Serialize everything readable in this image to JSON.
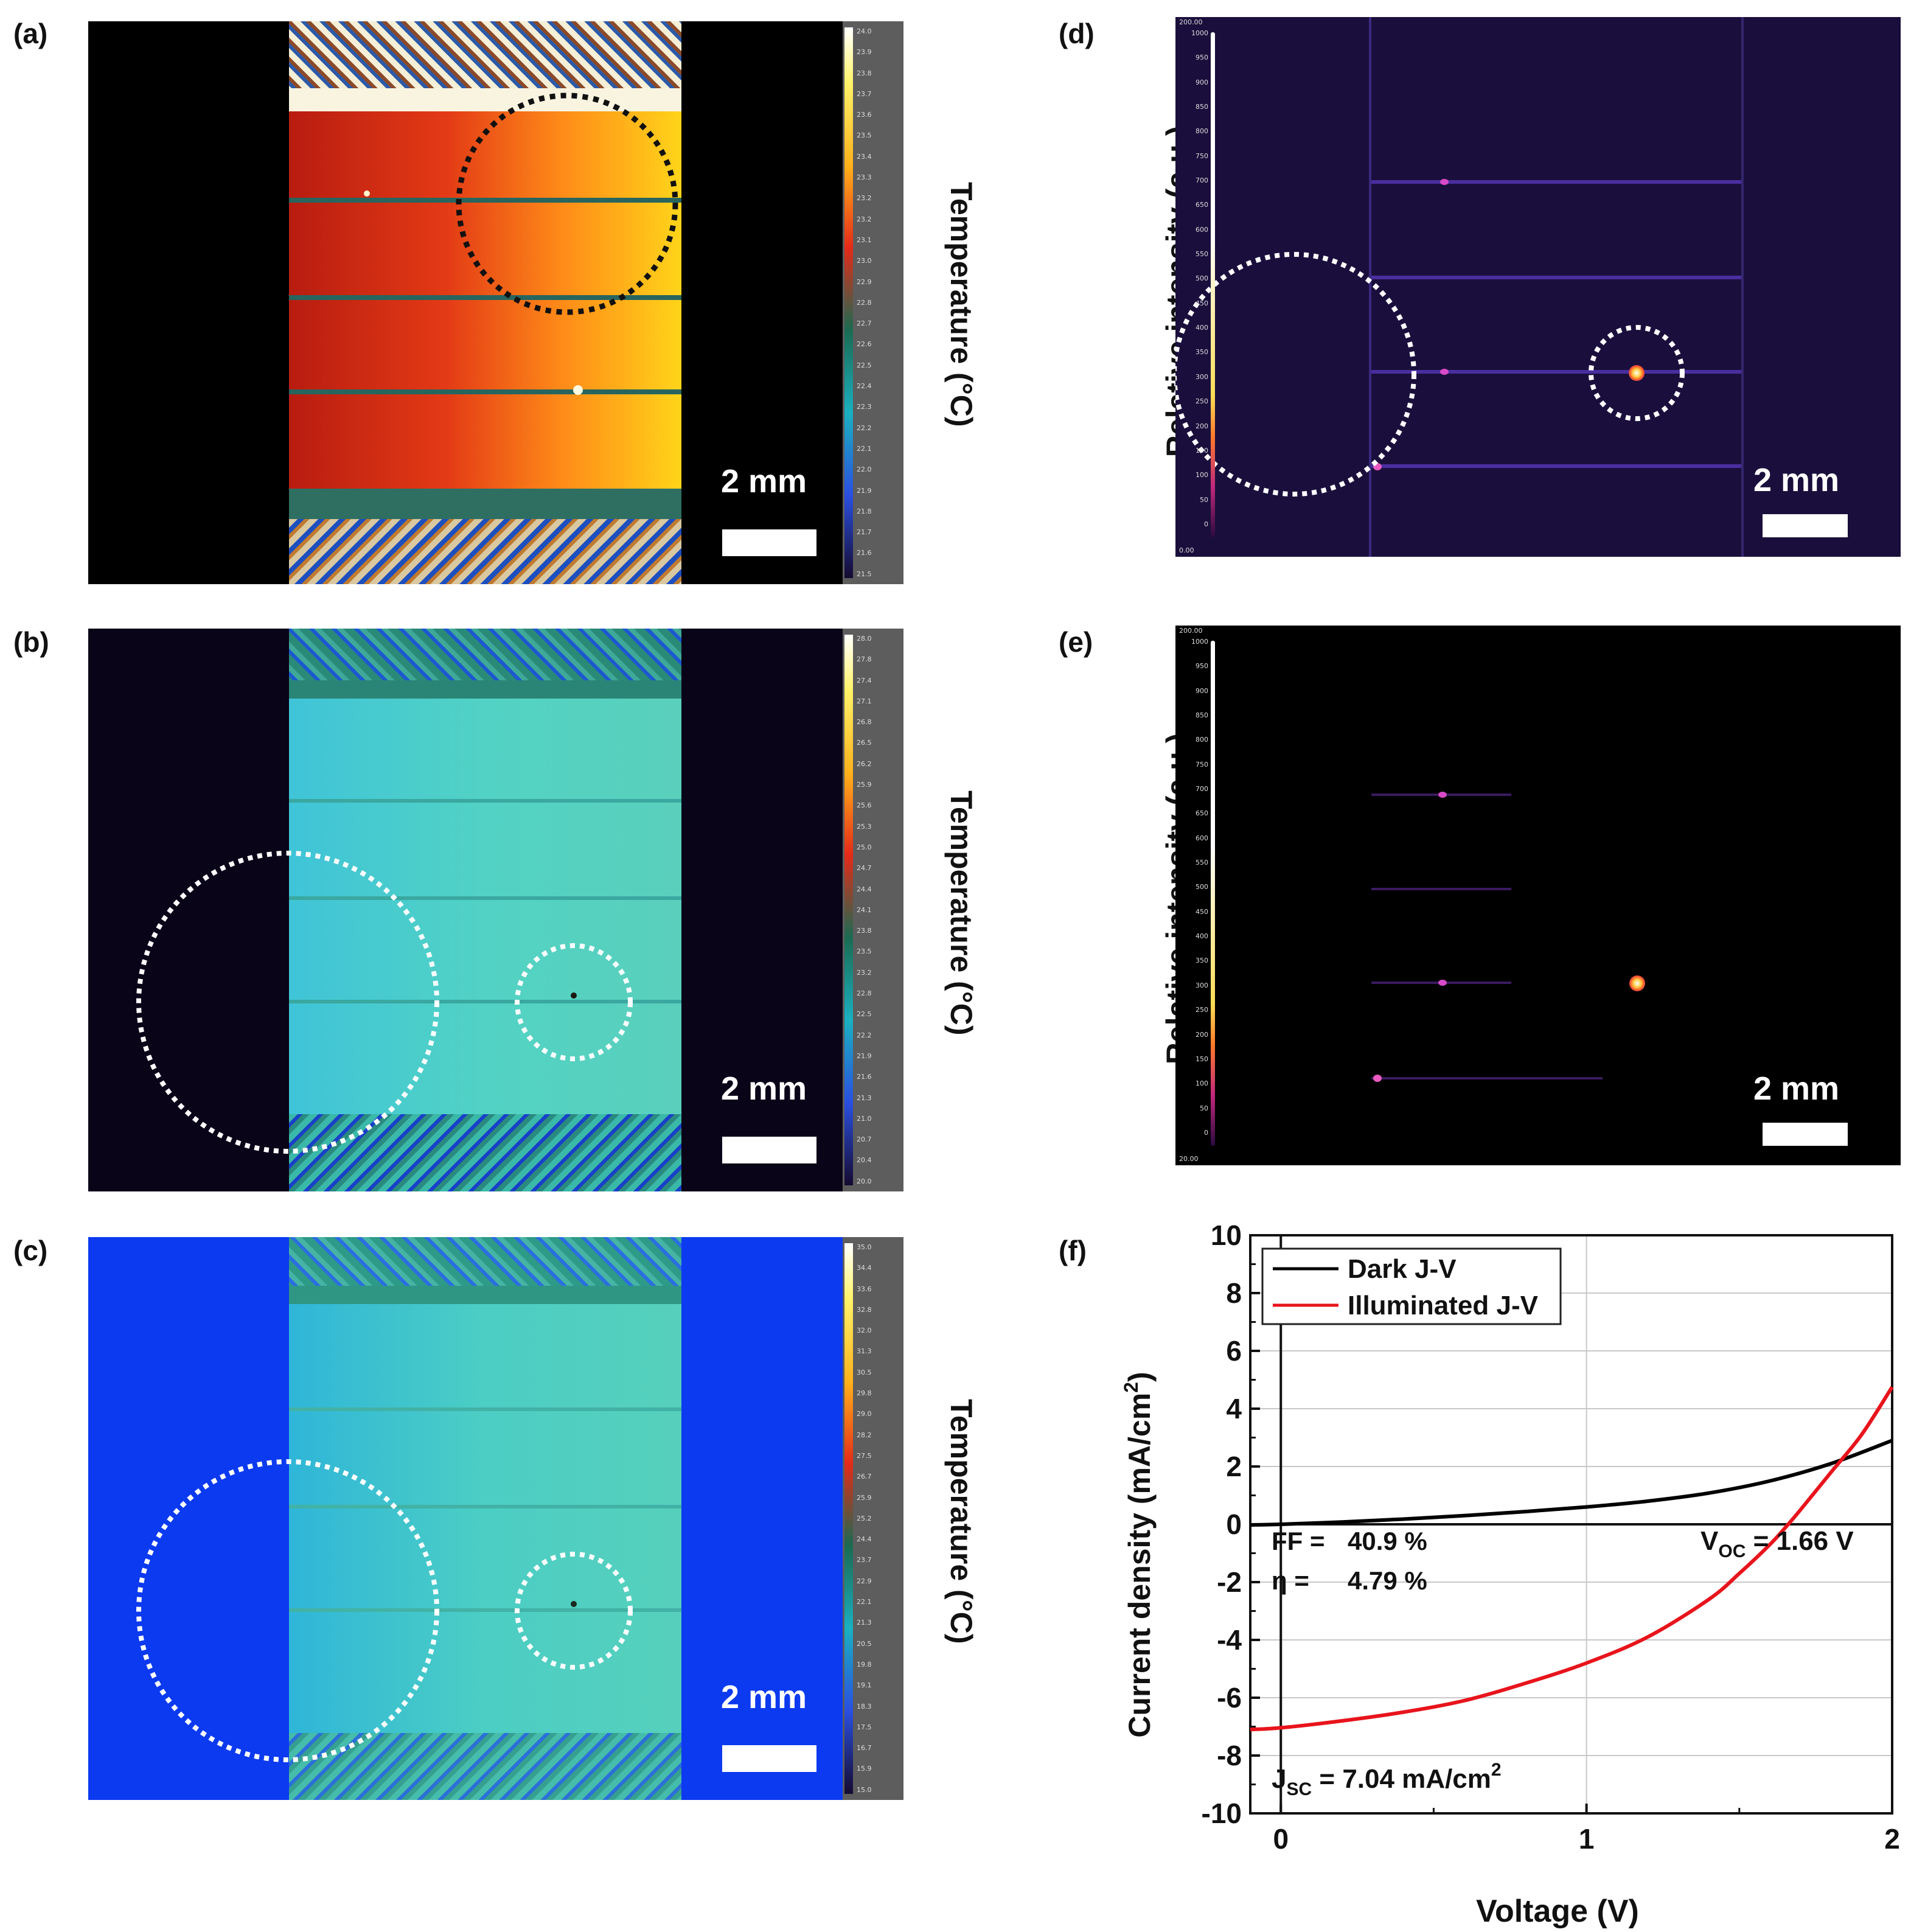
{
  "panels": {
    "a": {
      "label": "(a)",
      "axis_title": "Temperature (°C)",
      "scale": "2 mm",
      "colorbar_ticks": [
        "24.0",
        "23.9",
        "23.8",
        "23.7",
        "23.6",
        "23.5",
        "23.4",
        "23.3",
        "23.2",
        "23.2",
        "23.1",
        "23.0",
        "22.9",
        "22.8",
        "22.7",
        "22.6",
        "22.5",
        "22.4",
        "22.3",
        "22.2",
        "22.1",
        "22.0",
        "21.9",
        "21.8",
        "21.7",
        "21.6",
        "21.5"
      ]
    },
    "b": {
      "label": "(b)",
      "axis_title": "Temperature (°C)",
      "scale": "2 mm",
      "colorbar_ticks": [
        "28.0",
        "27.8",
        "27.4",
        "27.1",
        "26.8",
        "26.5",
        "26.2",
        "25.9",
        "25.6",
        "25.3",
        "25.0",
        "24.7",
        "24.4",
        "24.1",
        "23.8",
        "23.5",
        "23.2",
        "22.8",
        "22.5",
        "22.2",
        "21.9",
        "21.6",
        "21.3",
        "21.0",
        "20.7",
        "20.4",
        "20.0"
      ]
    },
    "c": {
      "label": "(c)",
      "axis_title": "Temperature (°C)",
      "scale": "2 mm",
      "colorbar_ticks": [
        "35.0",
        "34.4",
        "33.6",
        "32.8",
        "32.0",
        "31.3",
        "30.5",
        "29.8",
        "29.0",
        "28.2",
        "27.5",
        "26.7",
        "25.9",
        "25.2",
        "24.4",
        "23.7",
        "22.9",
        "22.1",
        "21.3",
        "20.5",
        "19.8",
        "19.1",
        "18.3",
        "17.5",
        "16.7",
        "15.9",
        "15.0"
      ]
    },
    "d": {
      "label": "(d)",
      "axis_title": "Relative intensity (a.u.)",
      "scale": "2 mm",
      "top_value": "200.00",
      "bottom_value": "0.00",
      "ticks": [
        "1000",
        "950",
        "900",
        "850",
        "800",
        "750",
        "700",
        "650",
        "600",
        "550",
        "500",
        "450",
        "400",
        "350",
        "300",
        "250",
        "200",
        "150",
        "100",
        "50",
        "0"
      ]
    },
    "e": {
      "label": "(e)",
      "axis_title": "Relative intensity (a.u.)",
      "scale": "2 mm",
      "top_value": "200.00",
      "bottom_value": "20.00",
      "ticks": [
        "1000",
        "950",
        "900",
        "850",
        "800",
        "750",
        "700",
        "650",
        "600",
        "550",
        "500",
        "450",
        "400",
        "350",
        "300",
        "250",
        "200",
        "150",
        "100",
        "50",
        "0"
      ]
    },
    "f": {
      "label": "(f)"
    }
  },
  "chart_data": {
    "type": "line",
    "xlabel": "Voltage (V)",
    "ylabel": "Current density (mA/cm²)",
    "ylabel_main": "Current density (mA/cm",
    "ylabel_sup": "2",
    "ylabel_close": ")",
    "xlim": [
      -0.1,
      2.0
    ],
    "ylim": [
      -10,
      10
    ],
    "xticks": [
      0,
      1,
      2
    ],
    "yticks": [
      -10,
      -8,
      -6,
      -4,
      -2,
      0,
      2,
      4,
      6,
      8,
      10
    ],
    "grid": true,
    "legend_position": "top-left",
    "series": [
      {
        "name": "Dark J-V",
        "color": "#000000",
        "x": [
          -0.1,
          0.0,
          0.2,
          0.4,
          0.6,
          0.8,
          1.0,
          1.2,
          1.4,
          1.6,
          1.8,
          2.0
        ],
        "y": [
          -0.02,
          0.0,
          0.08,
          0.18,
          0.3,
          0.44,
          0.6,
          0.8,
          1.08,
          1.5,
          2.1,
          2.9
        ]
      },
      {
        "name": "Illuminated J-V",
        "color": "#e8141c",
        "x": [
          -0.1,
          0.0,
          0.2,
          0.4,
          0.6,
          0.8,
          1.0,
          1.2,
          1.4,
          1.5,
          1.6,
          1.66,
          1.7,
          1.8,
          1.9,
          2.0
        ],
        "y": [
          -7.1,
          -7.04,
          -6.8,
          -6.5,
          -6.1,
          -5.5,
          -4.8,
          -3.9,
          -2.6,
          -1.7,
          -0.7,
          0.0,
          0.5,
          1.8,
          3.1,
          4.75
        ]
      }
    ],
    "annotations": {
      "ff_label": "FF =",
      "ff_value": "40.9 %",
      "eta_label": "η =",
      "eta_value": "4.79 %",
      "voc_main": "V",
      "voc_sub": "OC",
      "voc_value": " = 1.66 V",
      "jsc_main": "J",
      "jsc_sub": "SC",
      "jsc_value": " = 7.04 mA/cm",
      "jsc_sup": "2"
    }
  }
}
